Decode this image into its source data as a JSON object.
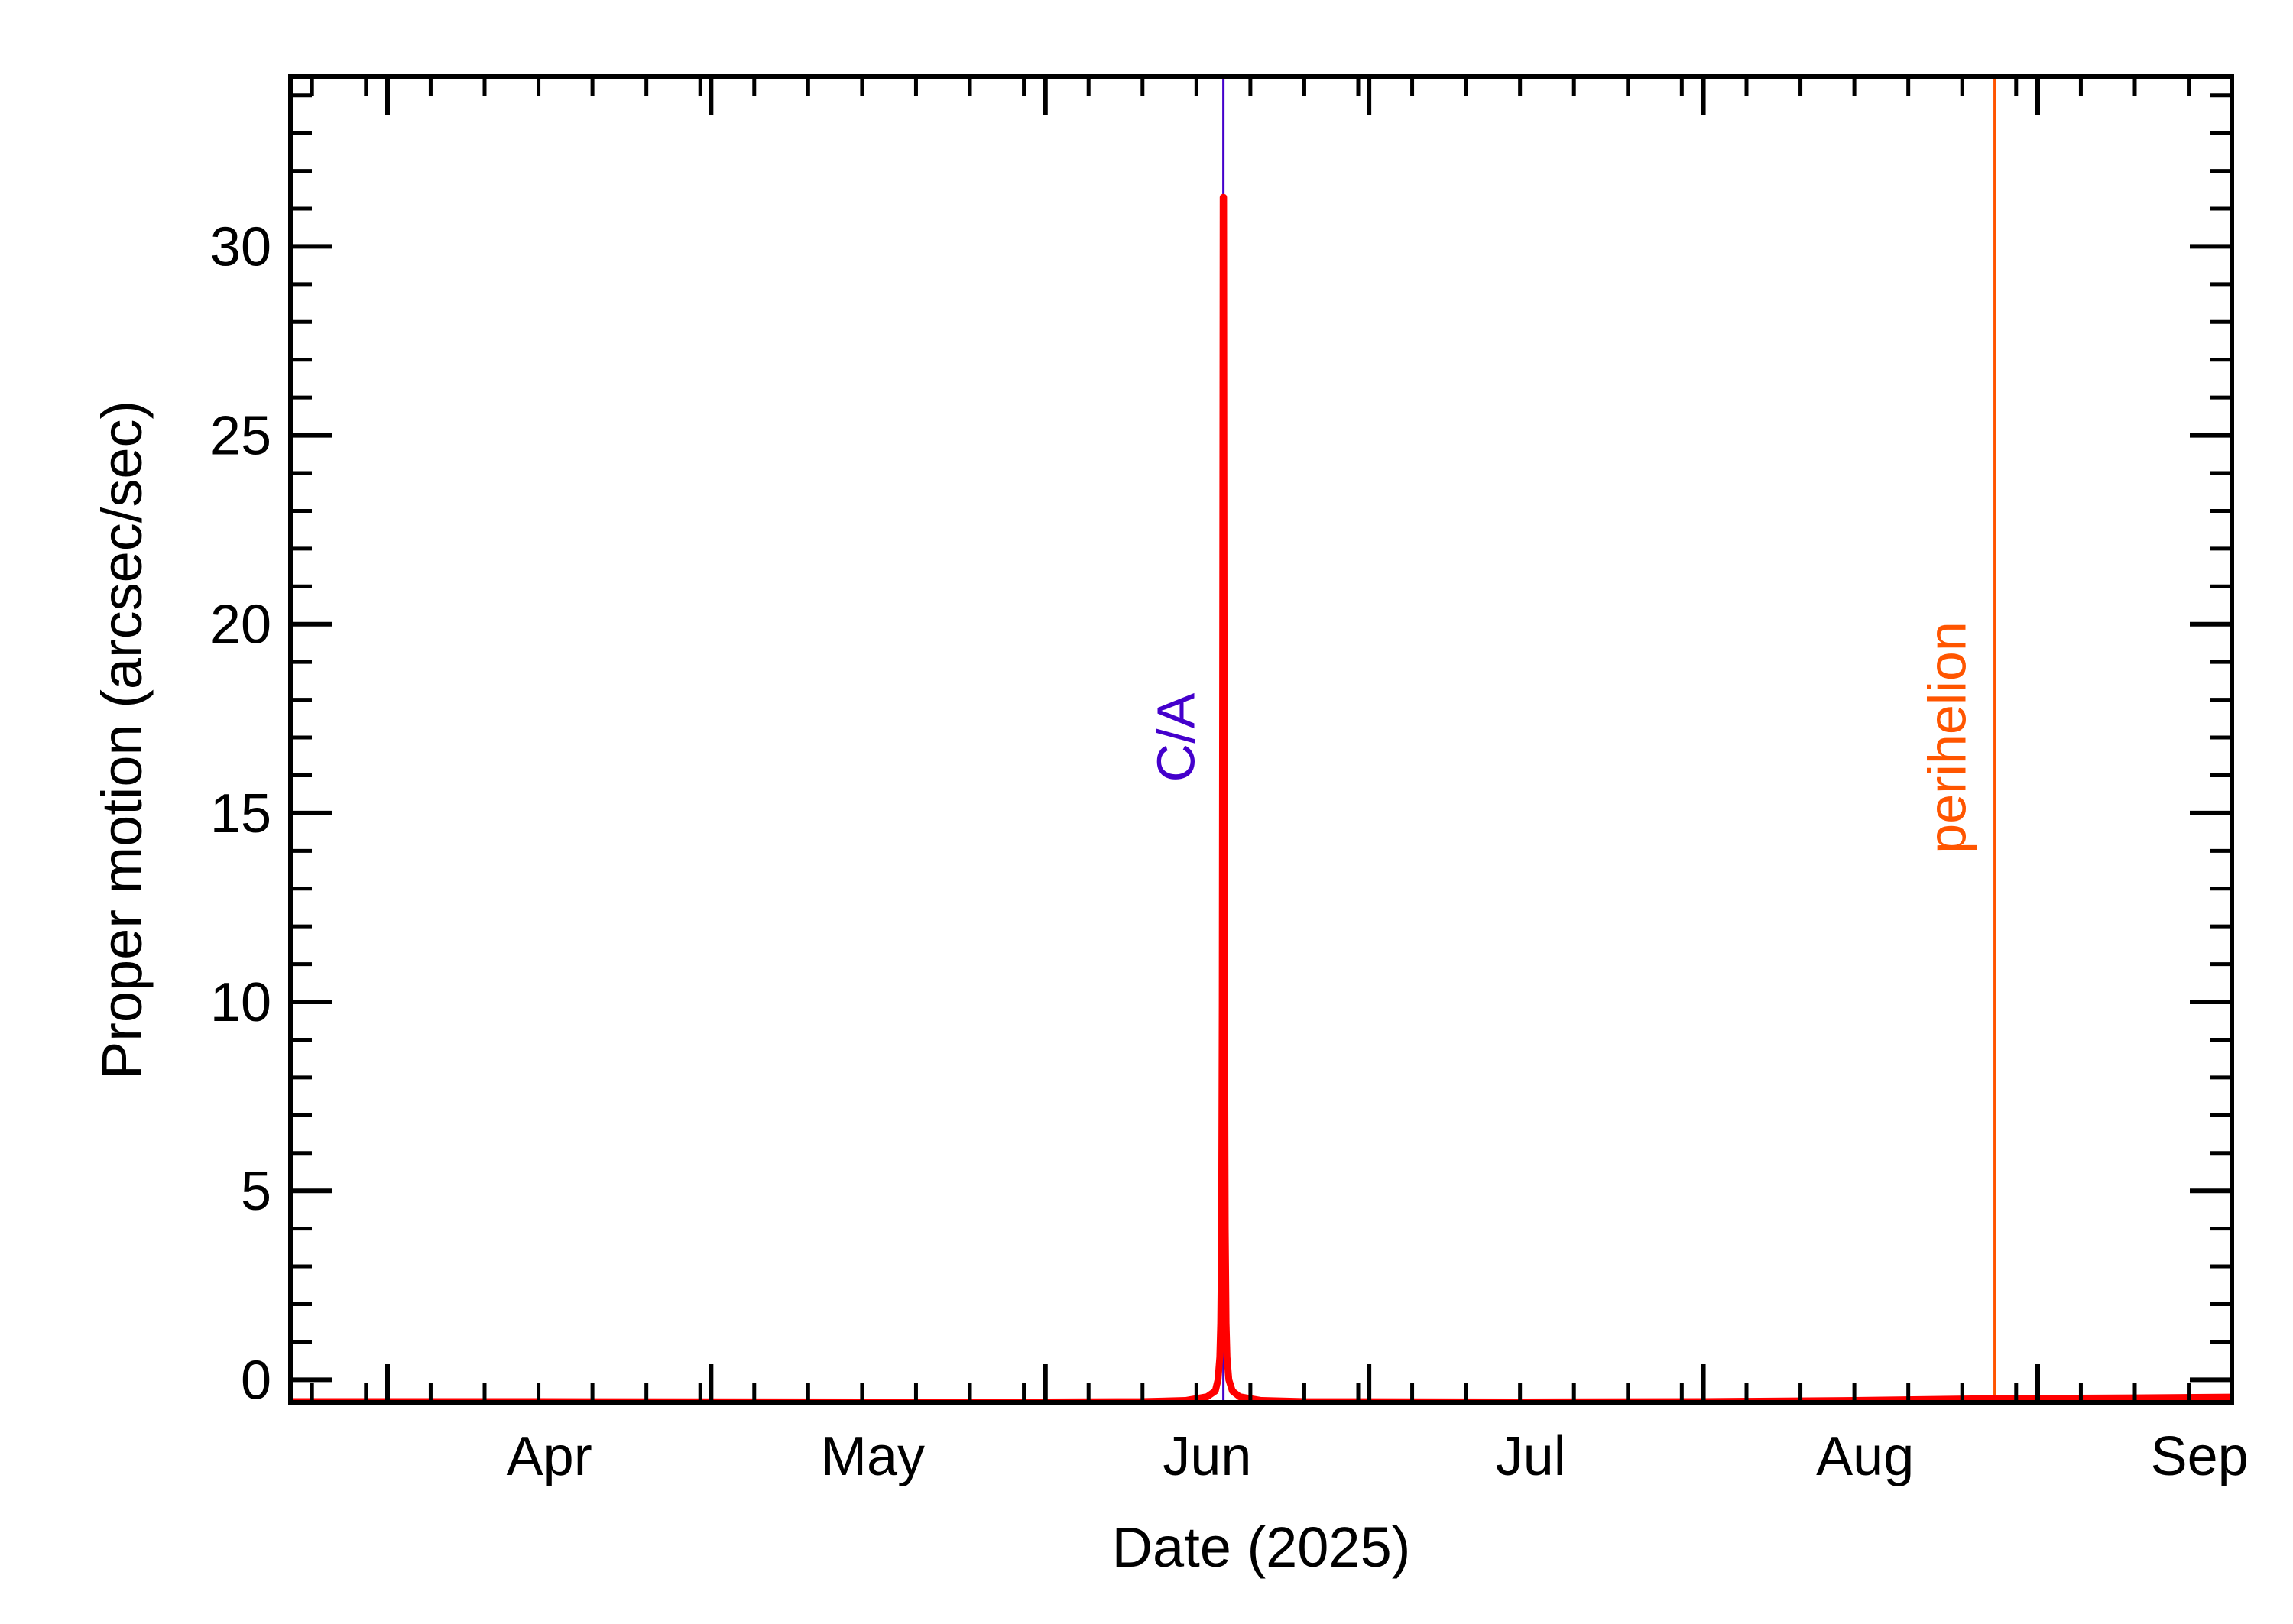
{
  "chart_data": {
    "type": "line",
    "title": "",
    "xlabel": "Date (2025)",
    "ylabel": "Proper motion (arcsec/sec)",
    "x_ticks": [
      {
        "date": "2025-04-01",
        "label": "Apr"
      },
      {
        "date": "2025-05-01",
        "label": "May"
      },
      {
        "date": "2025-06-01",
        "label": "Jun"
      },
      {
        "date": "2025-07-01",
        "label": "Jul"
      },
      {
        "date": "2025-08-01",
        "label": "Aug"
      },
      {
        "date": "2025-09-01",
        "label": "Sep"
      }
    ],
    "xlim": [
      "2025-03-23",
      "2025-09-19"
    ],
    "ylim": [
      -0.6,
      34.5
    ],
    "y_ticks": [
      0,
      5,
      10,
      15,
      20,
      25,
      30
    ],
    "grid": false,
    "markers": [
      {
        "label": "C/A",
        "date": "2025-06-17T12:00",
        "color": "#4400cc"
      },
      {
        "label": "perihelion",
        "date": "2025-08-28",
        "color": "#ff5500"
      }
    ],
    "series": [
      {
        "color": "#ff0000",
        "points": [
          [
            "2025-03-23",
            -0.58
          ],
          [
            "2025-04-15",
            -0.58
          ],
          [
            "2025-05-15",
            -0.59
          ],
          [
            "2025-06-01",
            -0.59
          ],
          [
            "2025-06-10",
            -0.58
          ],
          [
            "2025-06-14",
            -0.55
          ],
          [
            "2025-06-16",
            -0.45
          ],
          [
            "2025-06-16T18:00",
            -0.3
          ],
          [
            "2025-06-17T00:00",
            0.0
          ],
          [
            "2025-06-17T04:00",
            0.6
          ],
          [
            "2025-06-17T06:00",
            1.5
          ],
          [
            "2025-06-17T08:00",
            4.0
          ],
          [
            "2025-06-17T09:30",
            10.0
          ],
          [
            "2025-06-17T10:30",
            20.0
          ],
          [
            "2025-06-17T11:30",
            31.3
          ],
          [
            "2025-06-17T12:30",
            31.3
          ],
          [
            "2025-06-17T13:30",
            20.0
          ],
          [
            "2025-06-17T14:30",
            10.0
          ],
          [
            "2025-06-17T16:00",
            4.0
          ],
          [
            "2025-06-17T18:00",
            1.5
          ],
          [
            "2025-06-17T20:00",
            0.6
          ],
          [
            "2025-06-18T00:00",
            0.0
          ],
          [
            "2025-06-18T08:00",
            -0.3
          ],
          [
            "2025-06-19",
            -0.45
          ],
          [
            "2025-06-21",
            -0.55
          ],
          [
            "2025-06-25",
            -0.58
          ],
          [
            "2025-07-15",
            -0.59
          ],
          [
            "2025-08-01",
            -0.58
          ],
          [
            "2025-08-15",
            -0.55
          ],
          [
            "2025-08-28",
            -0.5
          ],
          [
            "2025-09-10",
            -0.48
          ],
          [
            "2025-09-19",
            -0.46
          ]
        ]
      }
    ]
  }
}
